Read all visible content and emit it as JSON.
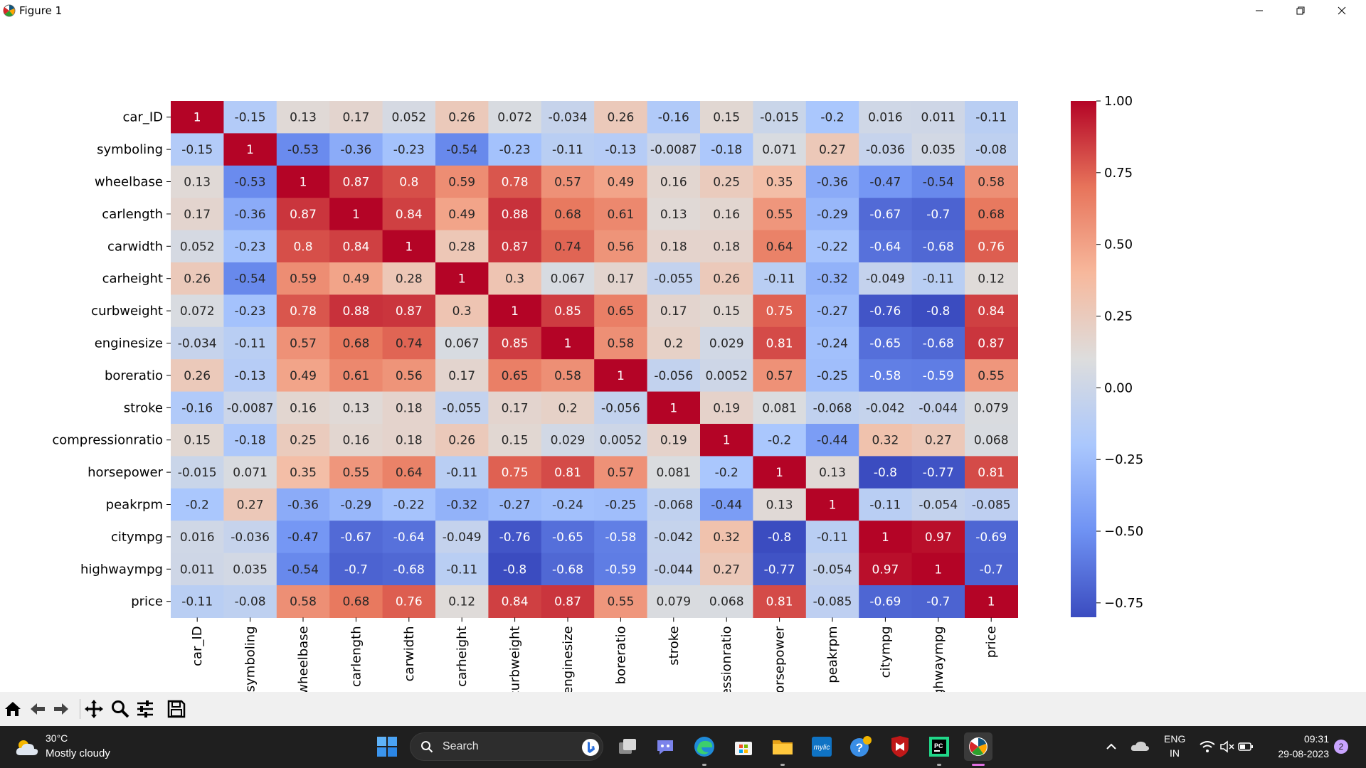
{
  "window": {
    "title": "Figure 1"
  },
  "figure": {
    "colorbar": {
      "colors": [
        "#3b4cc0",
        "#6f92f3",
        "#aac7fd",
        "#dddddd",
        "#f7b89c",
        "#e7745b",
        "#b40426"
      ]
    }
  },
  "chart_data": {
    "type": "heatmap",
    "title": "",
    "xlabel": "",
    "ylabel": "",
    "labels": [
      "car_ID",
      "symboling",
      "wheelbase",
      "carlength",
      "carwidth",
      "carheight",
      "curbweight",
      "enginesize",
      "boreratio",
      "stroke",
      "compressionratio",
      "horsepower",
      "peakrpm",
      "citympg",
      "highwaympg",
      "price"
    ],
    "matrix": [
      [
        "1",
        "-0.15",
        "0.13",
        "0.17",
        "0.052",
        "0.26",
        "0.072",
        "-0.034",
        "0.26",
        "-0.16",
        "0.15",
        "-0.015",
        "-0.2",
        "0.016",
        "0.011",
        "-0.11"
      ],
      [
        "-0.15",
        "1",
        "-0.53",
        "-0.36",
        "-0.23",
        "-0.54",
        "-0.23",
        "-0.11",
        "-0.13",
        "-0.0087",
        "-0.18",
        "0.071",
        "0.27",
        "-0.036",
        "0.035",
        "-0.08"
      ],
      [
        "0.13",
        "-0.53",
        "1",
        "0.87",
        "0.8",
        "0.59",
        "0.78",
        "0.57",
        "0.49",
        "0.16",
        "0.25",
        "0.35",
        "-0.36",
        "-0.47",
        "-0.54",
        "0.58"
      ],
      [
        "0.17",
        "-0.36",
        "0.87",
        "1",
        "0.84",
        "0.49",
        "0.88",
        "0.68",
        "0.61",
        "0.13",
        "0.16",
        "0.55",
        "-0.29",
        "-0.67",
        "-0.7",
        "0.68"
      ],
      [
        "0.052",
        "-0.23",
        "0.8",
        "0.84",
        "1",
        "0.28",
        "0.87",
        "0.74",
        "0.56",
        "0.18",
        "0.18",
        "0.64",
        "-0.22",
        "-0.64",
        "-0.68",
        "0.76"
      ],
      [
        "0.26",
        "-0.54",
        "0.59",
        "0.49",
        "0.28",
        "1",
        "0.3",
        "0.067",
        "0.17",
        "-0.055",
        "0.26",
        "-0.11",
        "-0.32",
        "-0.049",
        "-0.11",
        "0.12"
      ],
      [
        "0.072",
        "-0.23",
        "0.78",
        "0.88",
        "0.87",
        "0.3",
        "1",
        "0.85",
        "0.65",
        "0.17",
        "0.15",
        "0.75",
        "-0.27",
        "-0.76",
        "-0.8",
        "0.84"
      ],
      [
        "-0.034",
        "-0.11",
        "0.57",
        "0.68",
        "0.74",
        "0.067",
        "0.85",
        "1",
        "0.58",
        "0.2",
        "0.029",
        "0.81",
        "-0.24",
        "-0.65",
        "-0.68",
        "0.87"
      ],
      [
        "0.26",
        "-0.13",
        "0.49",
        "0.61",
        "0.56",
        "0.17",
        "0.65",
        "0.58",
        "1",
        "-0.056",
        "0.0052",
        "0.57",
        "-0.25",
        "-0.58",
        "-0.59",
        "0.55"
      ],
      [
        "-0.16",
        "-0.0087",
        "0.16",
        "0.13",
        "0.18",
        "-0.055",
        "0.17",
        "0.2",
        "-0.056",
        "1",
        "0.19",
        "0.081",
        "-0.068",
        "-0.042",
        "-0.044",
        "0.079"
      ],
      [
        "0.15",
        "-0.18",
        "0.25",
        "0.16",
        "0.18",
        "0.26",
        "0.15",
        "0.029",
        "0.0052",
        "0.19",
        "1",
        "-0.2",
        "-0.44",
        "0.32",
        "0.27",
        "0.068"
      ],
      [
        "-0.015",
        "0.071",
        "0.35",
        "0.55",
        "0.64",
        "-0.11",
        "0.75",
        "0.81",
        "0.57",
        "0.081",
        "-0.2",
        "1",
        "0.13",
        "-0.8",
        "-0.77",
        "0.81"
      ],
      [
        "-0.2",
        "0.27",
        "-0.36",
        "-0.29",
        "-0.22",
        "-0.32",
        "-0.27",
        "-0.24",
        "-0.25",
        "-0.068",
        "-0.44",
        "0.13",
        "1",
        "-0.11",
        "-0.054",
        "-0.085"
      ],
      [
        "0.016",
        "-0.036",
        "-0.47",
        "-0.67",
        "-0.64",
        "-0.049",
        "-0.76",
        "-0.65",
        "-0.58",
        "-0.042",
        "0.32",
        "-0.8",
        "-0.11",
        "1",
        "0.97",
        "-0.69"
      ],
      [
        "0.011",
        "0.035",
        "-0.54",
        "-0.7",
        "-0.68",
        "-0.11",
        "-0.8",
        "-0.68",
        "-0.59",
        "-0.044",
        "0.27",
        "-0.77",
        "-0.054",
        "0.97",
        "1",
        "-0.7"
      ],
      [
        "-0.11",
        "-0.08",
        "0.58",
        "0.68",
        "0.76",
        "0.12",
        "0.84",
        "0.87",
        "0.55",
        "0.079",
        "0.068",
        "0.81",
        "-0.085",
        "-0.69",
        "-0.7",
        "1"
      ]
    ],
    "vmin": -0.8,
    "vmax": 1.0,
    "colorbar_ticks": [
      1.0,
      0.75,
      0.5,
      0.25,
      0.0,
      -0.25,
      -0.5,
      -0.75
    ],
    "colorbar_tick_labels": [
      "1.00",
      "0.75",
      "0.50",
      "0.25",
      "0.00",
      "−0.25",
      "−0.50",
      "−0.75"
    ],
    "colormap": "coolwarm",
    "annotations": true
  },
  "toolbar": {
    "items": [
      "home-icon",
      "back-arrow-icon",
      "forward-arrow-icon",
      "pan-icon",
      "zoom-icon",
      "configure-subplots-icon",
      "save-icon"
    ]
  },
  "taskbar": {
    "weather": {
      "temp": "30°C",
      "desc": "Mostly cloudy"
    },
    "search_label": "Search",
    "language": "ENG",
    "region": "IN",
    "time": "09:31",
    "date": "29-08-2023",
    "notification_count": "2",
    "mylic_label": "mylic",
    "pc_label": "PC"
  }
}
